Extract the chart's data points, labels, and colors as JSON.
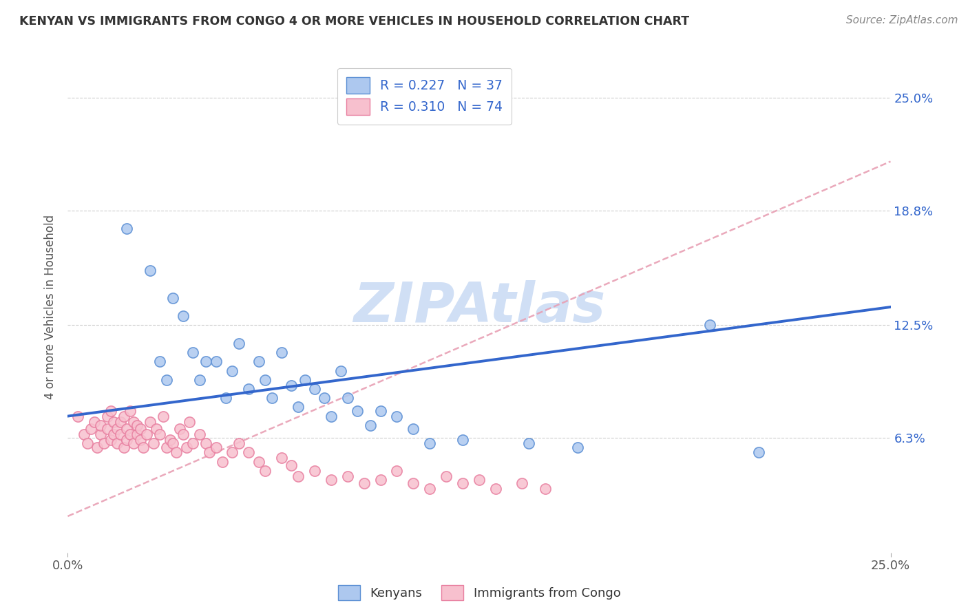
{
  "title": "KENYAN VS IMMIGRANTS FROM CONGO 4 OR MORE VEHICLES IN HOUSEHOLD CORRELATION CHART",
  "source_text": "Source: ZipAtlas.com",
  "ylabel": "4 or more Vehicles in Household",
  "xlim": [
    0.0,
    0.25
  ],
  "ylim": [
    0.0,
    0.27
  ],
  "x_ticks": [
    0.0,
    0.25
  ],
  "x_tick_labels": [
    "0.0%",
    "25.0%"
  ],
  "y_tick_values": [
    0.063,
    0.125,
    0.188,
    0.25
  ],
  "y_tick_labels": [
    "6.3%",
    "12.5%",
    "18.8%",
    "25.0%"
  ],
  "legend_labels": [
    "Kenyans",
    "Immigrants from Congo"
  ],
  "legend_r_values": [
    "R = 0.227",
    "R = 0.310"
  ],
  "legend_n_values": [
    "N = 37",
    "N = 74"
  ],
  "blue_fill_color": "#adc8ef",
  "pink_fill_color": "#f7c0ce",
  "blue_edge_color": "#5b8fd4",
  "pink_edge_color": "#e87fa0",
  "blue_line_color": "#3366cc",
  "pink_line_color": "#e05080",
  "dashed_line_color": "#e8a0b4",
  "watermark_color": "#d0dff5",
  "title_color": "#333333",
  "axis_label_color": "#3366cc",
  "blue_trend_x": [
    0.0,
    0.25
  ],
  "blue_trend_y": [
    0.075,
    0.135
  ],
  "pink_trend_x": [
    0.0,
    0.25
  ],
  "pink_trend_y": [
    0.02,
    0.215
  ],
  "blue_scatter_x": [
    0.018,
    0.025,
    0.028,
    0.03,
    0.032,
    0.035,
    0.038,
    0.04,
    0.042,
    0.045,
    0.048,
    0.05,
    0.052,
    0.055,
    0.058,
    0.06,
    0.062,
    0.065,
    0.068,
    0.07,
    0.072,
    0.075,
    0.078,
    0.08,
    0.083,
    0.085,
    0.088,
    0.092,
    0.095,
    0.1,
    0.105,
    0.11,
    0.12,
    0.14,
    0.155,
    0.195,
    0.21
  ],
  "blue_scatter_y": [
    0.178,
    0.155,
    0.105,
    0.095,
    0.14,
    0.13,
    0.11,
    0.095,
    0.105,
    0.105,
    0.085,
    0.1,
    0.115,
    0.09,
    0.105,
    0.095,
    0.085,
    0.11,
    0.092,
    0.08,
    0.095,
    0.09,
    0.085,
    0.075,
    0.1,
    0.085,
    0.078,
    0.07,
    0.078,
    0.075,
    0.068,
    0.06,
    0.062,
    0.06,
    0.058,
    0.125,
    0.055
  ],
  "pink_scatter_x": [
    0.003,
    0.005,
    0.006,
    0.007,
    0.008,
    0.009,
    0.01,
    0.01,
    0.011,
    0.012,
    0.012,
    0.013,
    0.013,
    0.014,
    0.014,
    0.015,
    0.015,
    0.016,
    0.016,
    0.017,
    0.017,
    0.018,
    0.018,
    0.019,
    0.019,
    0.02,
    0.02,
    0.021,
    0.021,
    0.022,
    0.022,
    0.023,
    0.024,
    0.025,
    0.026,
    0.027,
    0.028,
    0.029,
    0.03,
    0.031,
    0.032,
    0.033,
    0.034,
    0.035,
    0.036,
    0.037,
    0.038,
    0.04,
    0.042,
    0.043,
    0.045,
    0.047,
    0.05,
    0.052,
    0.055,
    0.058,
    0.06,
    0.065,
    0.068,
    0.07,
    0.075,
    0.08,
    0.085,
    0.09,
    0.095,
    0.1,
    0.105,
    0.11,
    0.115,
    0.12,
    0.125,
    0.13,
    0.138,
    0.145
  ],
  "pink_scatter_y": [
    0.075,
    0.065,
    0.06,
    0.068,
    0.072,
    0.058,
    0.065,
    0.07,
    0.06,
    0.075,
    0.068,
    0.062,
    0.078,
    0.065,
    0.072,
    0.06,
    0.068,
    0.065,
    0.072,
    0.058,
    0.075,
    0.062,
    0.068,
    0.065,
    0.078,
    0.06,
    0.072,
    0.065,
    0.07,
    0.062,
    0.068,
    0.058,
    0.065,
    0.072,
    0.06,
    0.068,
    0.065,
    0.075,
    0.058,
    0.062,
    0.06,
    0.055,
    0.068,
    0.065,
    0.058,
    0.072,
    0.06,
    0.065,
    0.06,
    0.055,
    0.058,
    0.05,
    0.055,
    0.06,
    0.055,
    0.05,
    0.045,
    0.052,
    0.048,
    0.042,
    0.045,
    0.04,
    0.042,
    0.038,
    0.04,
    0.045,
    0.038,
    0.035,
    0.042,
    0.038,
    0.04,
    0.035,
    0.038,
    0.035
  ]
}
